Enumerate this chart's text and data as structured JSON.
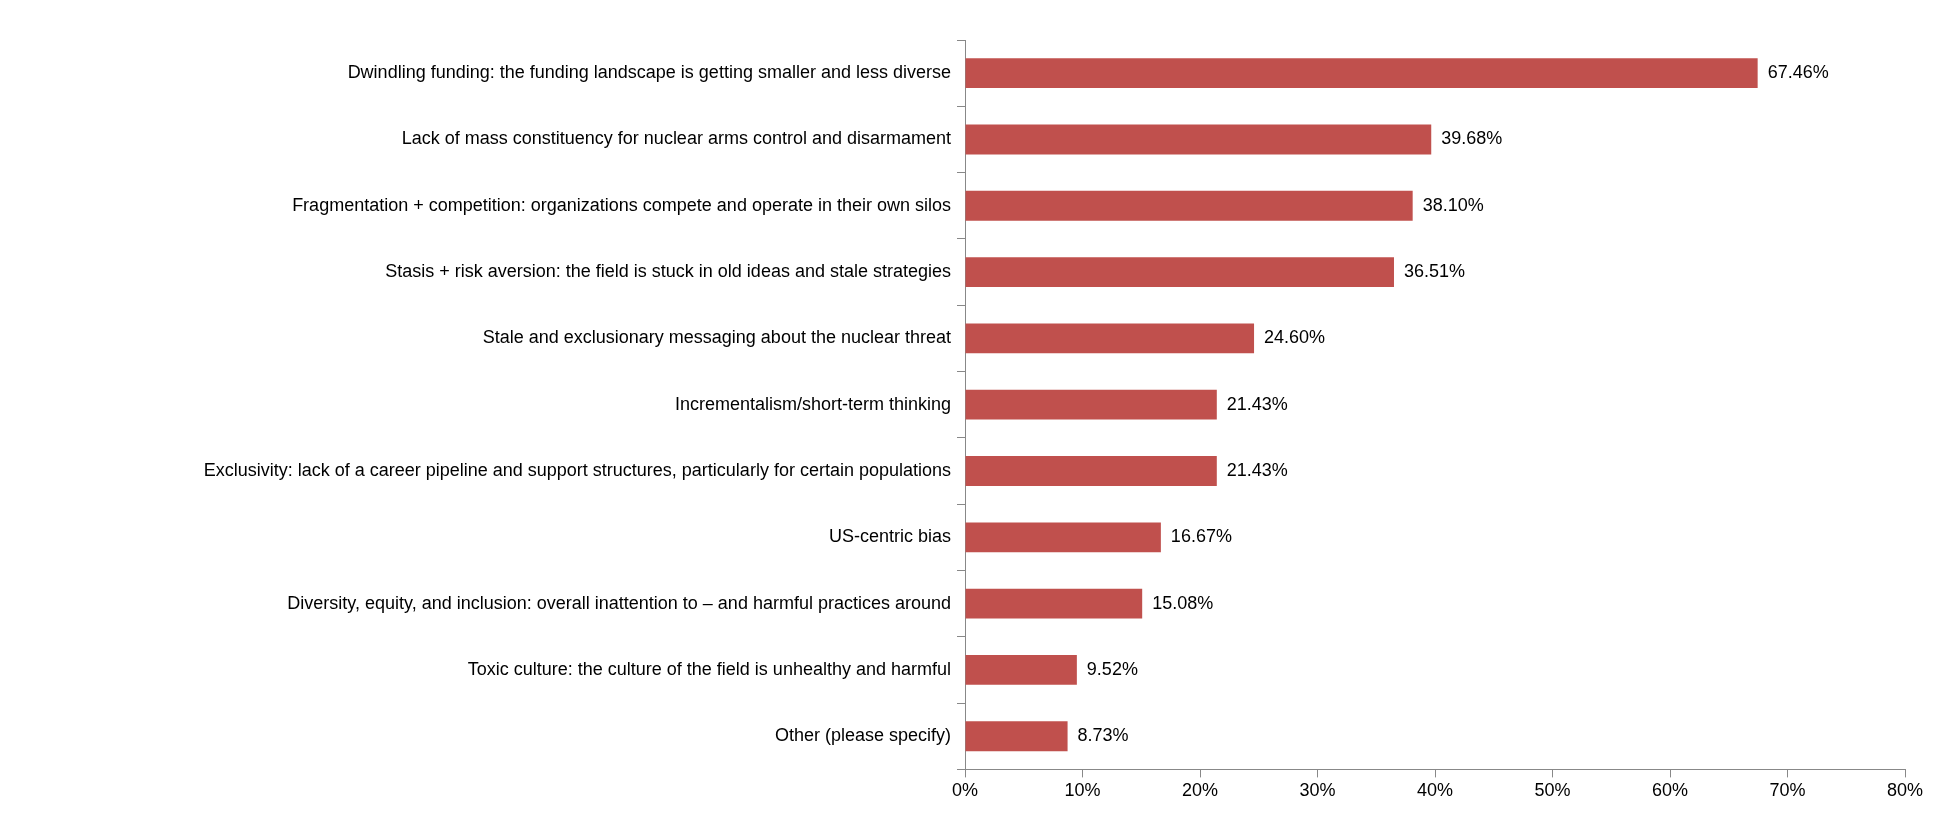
{
  "chart_data": {
    "type": "bar",
    "orientation": "horizontal",
    "categories": [
      "Dwindling funding: the funding landscape is getting smaller and less diverse",
      "Lack of mass constituency for nuclear arms control and disarmament",
      "Fragmentation + competition: organizations compete and operate in their own silos",
      "Stasis + risk aversion: the field is stuck in old ideas and stale strategies",
      "Stale and exclusionary messaging about the nuclear threat",
      "Incrementalism/short-term thinking",
      "Exclusivity: lack of a career pipeline and support structures, particularly for certain populations",
      "US-centric bias",
      "Diversity, equity, and inclusion: overall inattention to – and harmful practices around",
      "Toxic culture: the culture of the field is unhealthy and harmful",
      "Other (please specify)"
    ],
    "values": [
      67.46,
      39.68,
      38.1,
      36.51,
      24.6,
      21.43,
      21.43,
      16.67,
      15.08,
      9.52,
      8.73
    ],
    "value_labels": [
      "67.46%",
      "39.68%",
      "38.10%",
      "36.51%",
      "24.60%",
      "21.43%",
      "21.43%",
      "16.67%",
      "15.08%",
      "9.52%",
      "8.73%"
    ],
    "color": "#c0504d",
    "xlim": [
      0,
      80
    ],
    "xticks": [
      {
        "value": 0,
        "label": "0%"
      },
      {
        "value": 10,
        "label": "10%"
      },
      {
        "value": 20,
        "label": "20%"
      },
      {
        "value": 30,
        "label": "30%"
      },
      {
        "value": 40,
        "label": "40%"
      },
      {
        "value": 50,
        "label": "50%"
      },
      {
        "value": 60,
        "label": "60%"
      },
      {
        "value": 70,
        "label": "70%"
      },
      {
        "value": 80,
        "label": "80%"
      }
    ],
    "grid": false,
    "legend": false
  }
}
